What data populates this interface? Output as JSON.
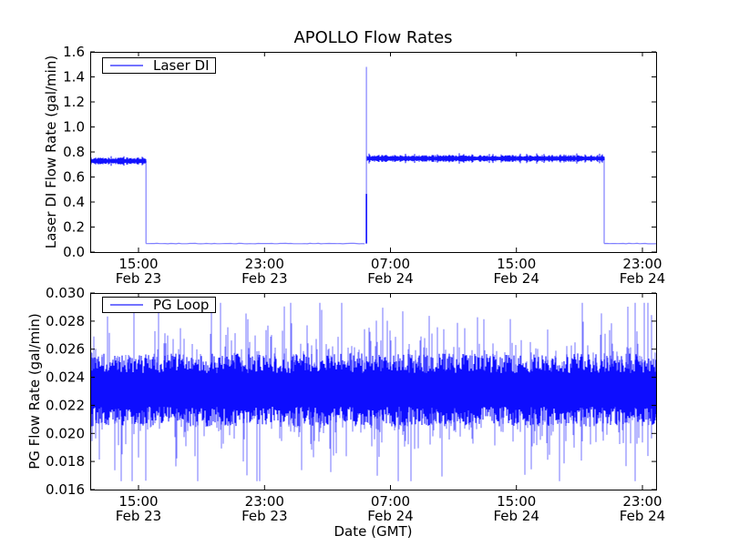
{
  "figure": {
    "background_color": "#ffffff",
    "axes_color": "#000000",
    "series_color": "#0000ff"
  },
  "chart_data": [
    {
      "type": "line",
      "title": "APOLLO Flow Rates",
      "ylabel": "Laser DI Flow Rate (gal/min)",
      "xlabel": "",
      "series_name": "Laser DI",
      "legend": {
        "label": "Laser DI",
        "location": "upper left"
      },
      "line_color": "#0000ff",
      "grid": false,
      "x_unit": "hours from Feb 23 00:00 GMT",
      "xlim": [
        11.93,
        47.87
      ],
      "ylim": [
        0.0,
        1.6
      ],
      "yticks": [
        0.0,
        0.2,
        0.4,
        0.6,
        0.8,
        1.0,
        1.2,
        1.4,
        1.6
      ],
      "ytick_labels": [
        "0.0",
        "0.2",
        "0.4",
        "0.6",
        "0.8",
        "1.0",
        "1.2",
        "1.4",
        "1.6"
      ],
      "xticks": [
        15,
        23,
        31,
        39,
        47
      ],
      "xtick_labels": [
        [
          "15:00",
          "Feb 23"
        ],
        [
          "23:00",
          "Feb 23"
        ],
        [
          "07:00",
          "Feb 24"
        ],
        [
          "15:00",
          "Feb 24"
        ],
        [
          "23:00",
          "Feb 24"
        ]
      ],
      "segments": [
        {
          "kind": "noisy",
          "t0": 11.93,
          "t1": 15.47,
          "level": 0.728,
          "amp": 0.028
        },
        {
          "kind": "flat",
          "t0": 15.47,
          "t1": 29.47,
          "level": 0.068
        },
        {
          "kind": "spike",
          "t": 29.47,
          "base": 0.068,
          "solid_top": 0.465,
          "peak": 1.48
        },
        {
          "kind": "noisy",
          "t0": 29.52,
          "t1": 44.57,
          "level": 0.748,
          "amp": 0.028
        },
        {
          "kind": "flat",
          "t0": 44.57,
          "t1": 47.87,
          "level": 0.068
        }
      ]
    },
    {
      "type": "line",
      "title": "",
      "ylabel": "PG Flow Rate (gal/min)",
      "xlabel": "Date (GMT)",
      "series_name": "PG Loop",
      "legend": {
        "label": "PG Loop",
        "location": "upper left"
      },
      "line_color": "#0000ff",
      "grid": false,
      "x_unit": "hours from Feb 23 00:00 GMT",
      "xlim": [
        11.93,
        47.87
      ],
      "ylim": [
        0.016,
        0.03
      ],
      "yticks": [
        0.016,
        0.018,
        0.02,
        0.022,
        0.024,
        0.026,
        0.028,
        0.03
      ],
      "ytick_labels": [
        "0.016",
        "0.018",
        "0.020",
        "0.022",
        "0.024",
        "0.026",
        "0.028",
        "0.030"
      ],
      "xticks": [
        15,
        23,
        31,
        39,
        47
      ],
      "xtick_labels": [
        [
          "15:00",
          "Feb 23"
        ],
        [
          "23:00",
          "Feb 23"
        ],
        [
          "07:00",
          "Feb 24"
        ],
        [
          "15:00",
          "Feb 24"
        ],
        [
          "23:00",
          "Feb 24"
        ]
      ],
      "band": {
        "min": 0.0212,
        "max": 0.025,
        "edge_jitter": 0.0007
      },
      "spikes": {
        "up_prob": 0.42,
        "down_prob": 0.42,
        "scale": 0.0014,
        "up_max": 0.0293,
        "down_min": 0.0166
      }
    }
  ]
}
